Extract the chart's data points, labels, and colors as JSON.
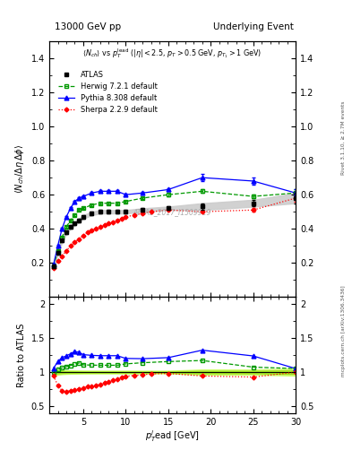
{
  "title_left": "13000 GeV pp",
  "title_right": "Underlying Event",
  "right_label_top": "Rivet 3.1.10, ≥ 2.7M events",
  "right_label_bottom": "mcplots.cern.ch [arXiv:1306.3436]",
  "watermark": "ATLAS_2017_I1509919",
  "ylabel_main": "⟨ N_{ch} / Δη Δφ ⟩",
  "ylabel_ratio": "Ratio to ATLAS",
  "xlabel": "p_{T}^{l}ead [GeV]",
  "ylim_main": [
    0.0,
    1.5
  ],
  "ylim_ratio": [
    0.4,
    2.1
  ],
  "xlim": [
    1,
    30
  ],
  "atlas_x": [
    1.5,
    2.0,
    2.5,
    3.0,
    3.5,
    4.0,
    4.5,
    5.0,
    6.0,
    7.0,
    8.0,
    9.0,
    10.0,
    12.0,
    15.0,
    19.0,
    25.0,
    30.0
  ],
  "atlas_y": [
    0.18,
    0.26,
    0.33,
    0.38,
    0.41,
    0.43,
    0.45,
    0.47,
    0.49,
    0.5,
    0.5,
    0.5,
    0.5,
    0.51,
    0.52,
    0.53,
    0.55,
    0.58
  ],
  "atlas_yerr": [
    0.01,
    0.01,
    0.01,
    0.01,
    0.01,
    0.01,
    0.01,
    0.01,
    0.01,
    0.01,
    0.01,
    0.01,
    0.01,
    0.01,
    0.01,
    0.02,
    0.02,
    0.03
  ],
  "herwig_x": [
    1.5,
    2.0,
    2.5,
    3.0,
    3.5,
    4.0,
    4.5,
    5.0,
    6.0,
    7.0,
    8.0,
    9.0,
    10.0,
    12.0,
    15.0,
    19.0,
    25.0,
    30.0
  ],
  "herwig_y": [
    0.18,
    0.27,
    0.35,
    0.41,
    0.45,
    0.48,
    0.51,
    0.52,
    0.54,
    0.55,
    0.55,
    0.55,
    0.56,
    0.58,
    0.6,
    0.62,
    0.59,
    0.61
  ],
  "herwig_yerr": [
    0.005,
    0.005,
    0.005,
    0.005,
    0.005,
    0.005,
    0.005,
    0.005,
    0.005,
    0.005,
    0.005,
    0.005,
    0.005,
    0.005,
    0.01,
    0.01,
    0.01,
    0.02
  ],
  "pythia_x": [
    1.5,
    2.0,
    2.5,
    3.0,
    3.5,
    4.0,
    4.5,
    5.0,
    6.0,
    7.0,
    8.0,
    9.0,
    10.0,
    12.0,
    15.0,
    19.0,
    25.0,
    30.0
  ],
  "pythia_y": [
    0.19,
    0.3,
    0.4,
    0.47,
    0.52,
    0.56,
    0.58,
    0.59,
    0.61,
    0.62,
    0.62,
    0.62,
    0.6,
    0.61,
    0.63,
    0.7,
    0.68,
    0.61
  ],
  "pythia_yerr": [
    0.005,
    0.005,
    0.005,
    0.005,
    0.005,
    0.005,
    0.005,
    0.005,
    0.005,
    0.005,
    0.005,
    0.005,
    0.005,
    0.005,
    0.01,
    0.02,
    0.02,
    0.02
  ],
  "sherpa_x": [
    1.5,
    2.0,
    2.5,
    3.0,
    3.5,
    4.0,
    4.5,
    5.0,
    5.5,
    6.0,
    6.5,
    7.0,
    7.5,
    8.0,
    8.5,
    9.0,
    9.5,
    10.0,
    11.0,
    12.0,
    13.0,
    15.0,
    19.0,
    25.0,
    30.0
  ],
  "sherpa_y": [
    0.17,
    0.21,
    0.24,
    0.27,
    0.3,
    0.32,
    0.34,
    0.36,
    0.38,
    0.39,
    0.4,
    0.41,
    0.42,
    0.43,
    0.44,
    0.45,
    0.46,
    0.47,
    0.48,
    0.49,
    0.5,
    0.51,
    0.5,
    0.51,
    0.58
  ],
  "sherpa_yerr": [
    0.003,
    0.003,
    0.003,
    0.003,
    0.003,
    0.003,
    0.003,
    0.003,
    0.003,
    0.003,
    0.003,
    0.003,
    0.003,
    0.003,
    0.003,
    0.003,
    0.003,
    0.003,
    0.003,
    0.003,
    0.003,
    0.005,
    0.005,
    0.01,
    0.02
  ],
  "atlas_color": "#000000",
  "herwig_color": "#009900",
  "pythia_color": "#0000ff",
  "sherpa_color": "#ff0000",
  "band_color_outer": "#ccff66",
  "band_color_inner": "#88cc00",
  "yticks_main": [
    0.2,
    0.4,
    0.6,
    0.8,
    1.0,
    1.2,
    1.4
  ],
  "yticks_ratio": [
    0.5,
    1.0,
    1.5,
    2.0
  ],
  "xticks": [
    5,
    10,
    15,
    20,
    25,
    30
  ]
}
